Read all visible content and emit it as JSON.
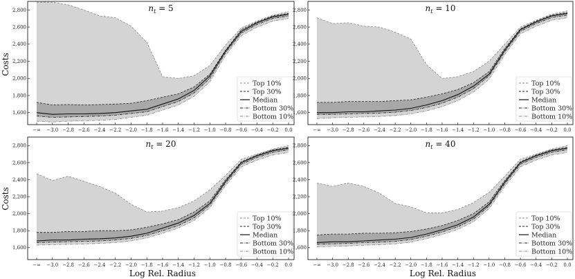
{
  "figure": {
    "xlabel": "Log Rel. Radius",
    "ylabel": "Costs"
  },
  "chart_data": {
    "type": "area",
    "xlabel": "Log Rel. Radius",
    "ylabel": "Costs",
    "x_tick_labels": [
      "−∞",
      "−3.0",
      "−2.8",
      "−2.6",
      "−2.4",
      "−2.2",
      "−2.0",
      "−1.8",
      "−1.6",
      "−1.4",
      "−1.2",
      "−1.0",
      "−0.8",
      "−0.6",
      "−0.4",
      "−0.2",
      "0.0"
    ],
    "y_ticks": [
      1600,
      1800,
      2000,
      2200,
      2400,
      2600,
      2800
    ],
    "y_tick_labels": [
      "1,600",
      "1,800",
      "2,000",
      "2,200",
      "2,400",
      "2,600",
      "2,800"
    ],
    "ylim": [
      1460,
      2900
    ],
    "legend_position": "lower-right",
    "legend": [
      {
        "label": "Top 10%",
        "style": "dashed",
        "color": "#888888"
      },
      {
        "label": "Top 30%",
        "style": "dashed",
        "color": "#222222"
      },
      {
        "label": "Median",
        "style": "solid",
        "color": "#111111"
      },
      {
        "label": "Bottom 30%",
        "style": "dashdot",
        "color": "#222222"
      },
      {
        "label": "Bottom 10%",
        "style": "dashdot",
        "color": "#888888"
      }
    ],
    "fill_colors": {
      "outer": "#d4d4d4",
      "inner": "#a8a8a8"
    },
    "panels": [
      {
        "title": "n_t = 5",
        "title_main": "n",
        "title_sub": "t",
        "title_rest": " = 5",
        "series": {
          "top10": [
            2890,
            2890,
            2860,
            2800,
            2730,
            2710,
            2610,
            2420,
            2020,
            2000,
            2030,
            2150,
            2390,
            2590,
            2670,
            2740,
            2780
          ],
          "top30": [
            1720,
            1690,
            1695,
            1690,
            1695,
            1700,
            1710,
            1740,
            1780,
            1820,
            1900,
            2050,
            2330,
            2570,
            2660,
            2730,
            2760
          ],
          "median": [
            1600,
            1580,
            1585,
            1585,
            1590,
            1600,
            1620,
            1640,
            1700,
            1760,
            1860,
            2030,
            2320,
            2550,
            2650,
            2720,
            2750
          ],
          "bottom30": [
            1560,
            1545,
            1550,
            1555,
            1560,
            1570,
            1590,
            1610,
            1670,
            1730,
            1830,
            2000,
            2300,
            2530,
            2630,
            2700,
            2730
          ],
          "bottom10": [
            1500,
            1490,
            1500,
            1505,
            1510,
            1520,
            1545,
            1570,
            1630,
            1690,
            1790,
            1960,
            2270,
            2500,
            2600,
            2670,
            2700
          ]
        }
      },
      {
        "title": "n_t = 10",
        "title_main": "n",
        "title_sub": "t",
        "title_rest": " = 10",
        "series": {
          "top10": [
            2710,
            2640,
            2650,
            2610,
            2600,
            2540,
            2460,
            2160,
            2000,
            2020,
            2080,
            2200,
            2400,
            2600,
            2680,
            2750,
            2790
          ],
          "top30": [
            1720,
            1720,
            1730,
            1730,
            1730,
            1740,
            1750,
            1780,
            1820,
            1870,
            1950,
            2080,
            2350,
            2580,
            2670,
            2740,
            2770
          ],
          "median": [
            1600,
            1600,
            1610,
            1610,
            1620,
            1630,
            1650,
            1690,
            1740,
            1810,
            1910,
            2050,
            2330,
            2570,
            2660,
            2730,
            2760
          ],
          "bottom30": [
            1580,
            1580,
            1585,
            1590,
            1595,
            1605,
            1625,
            1660,
            1710,
            1780,
            1880,
            2030,
            2310,
            2550,
            2640,
            2710,
            2740
          ],
          "bottom10": [
            1530,
            1540,
            1545,
            1550,
            1555,
            1565,
            1585,
            1620,
            1670,
            1740,
            1840,
            1990,
            2280,
            2520,
            2610,
            2680,
            2710
          ]
        }
      },
      {
        "title": "n_t = 20",
        "title_main": "n",
        "title_sub": "t",
        "title_rest": " = 20",
        "series": {
          "top10": [
            2470,
            2390,
            2440,
            2380,
            2320,
            2240,
            2110,
            2020,
            2030,
            2070,
            2150,
            2280,
            2450,
            2640,
            2700,
            2760,
            2800
          ],
          "top30": [
            1780,
            1780,
            1790,
            1790,
            1800,
            1800,
            1810,
            1840,
            1880,
            1930,
            2020,
            2150,
            2400,
            2610,
            2690,
            2750,
            2780
          ],
          "median": [
            1680,
            1690,
            1690,
            1700,
            1705,
            1715,
            1735,
            1770,
            1830,
            1890,
            1980,
            2120,
            2380,
            2600,
            2680,
            2740,
            2770
          ],
          "bottom30": [
            1660,
            1665,
            1670,
            1675,
            1680,
            1690,
            1710,
            1745,
            1800,
            1860,
            1950,
            2100,
            2360,
            2580,
            2660,
            2720,
            2750
          ],
          "bottom10": [
            1630,
            1635,
            1640,
            1645,
            1650,
            1660,
            1680,
            1715,
            1770,
            1830,
            1920,
            2070,
            2330,
            2550,
            2630,
            2690,
            2720
          ]
        }
      },
      {
        "title": "n_t = 40",
        "title_main": "n",
        "title_sub": "t",
        "title_rest": " = 40",
        "series": {
          "top10": [
            2360,
            2320,
            2360,
            2320,
            2240,
            2120,
            2080,
            2010,
            2010,
            2050,
            2130,
            2250,
            2440,
            2640,
            2700,
            2760,
            2800
          ],
          "top30": [
            1750,
            1760,
            1760,
            1770,
            1770,
            1775,
            1790,
            1820,
            1860,
            1920,
            2000,
            2140,
            2390,
            2610,
            2690,
            2750,
            2780
          ],
          "median": [
            1660,
            1670,
            1670,
            1680,
            1690,
            1700,
            1720,
            1760,
            1810,
            1870,
            1960,
            2110,
            2370,
            2600,
            2680,
            2740,
            2770
          ],
          "bottom30": [
            1640,
            1645,
            1650,
            1660,
            1665,
            1675,
            1695,
            1735,
            1785,
            1845,
            1935,
            2090,
            2350,
            2580,
            2660,
            2720,
            2750
          ],
          "bottom10": [
            1610,
            1615,
            1620,
            1630,
            1635,
            1645,
            1665,
            1705,
            1755,
            1815,
            1905,
            2060,
            2320,
            2550,
            2630,
            2690,
            2720
          ]
        }
      }
    ]
  }
}
